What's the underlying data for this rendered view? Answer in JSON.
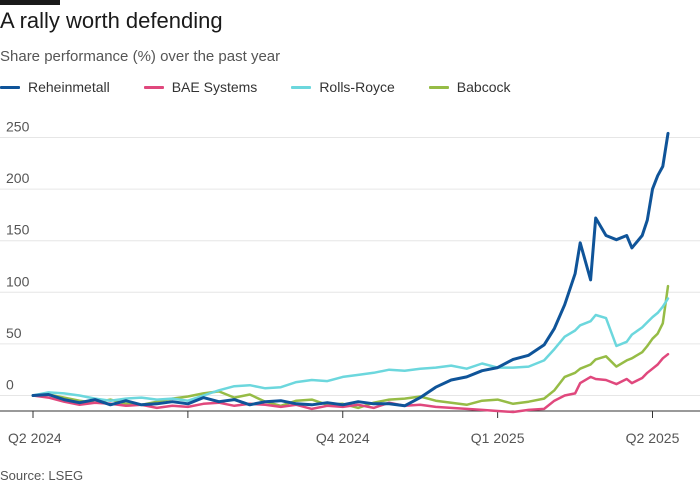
{
  "title": "A rally worth defending",
  "subtitle": "Share performance (%) over the past year",
  "source": "Source: LSEG",
  "chart_data": {
    "type": "line",
    "title": "A rally worth defending",
    "subtitle": "Share performance (%) over the past year",
    "xlabel": "",
    "ylabel": "Share performance (%)",
    "ylim": [
      -20,
      265
    ],
    "xlim": [
      0,
      12.3
    ],
    "x_unit": "months since start of Q2 2024",
    "yticks": [
      0,
      50,
      100,
      150,
      200,
      250
    ],
    "xticks": [
      {
        "value": 0,
        "label": "Q2 2024"
      },
      {
        "value": 6,
        "label": "Q4 2024"
      },
      {
        "value": 9,
        "label": "Q1 2025"
      },
      {
        "value": 12,
        "label": "Q2 2025"
      }
    ],
    "extra_xticks": [
      3
    ],
    "extra_xtick_labels": [
      {
        "value": 12,
        "label": "Q2 2025"
      }
    ],
    "grid": true,
    "legend_position": "top-left",
    "series": [
      {
        "name": "Reheinmetall",
        "color": "#0f5499",
        "x": [
          0,
          0.3,
          0.6,
          0.9,
          1.2,
          1.5,
          1.8,
          2.1,
          2.4,
          2.7,
          3.0,
          3.3,
          3.6,
          3.9,
          4.2,
          4.5,
          4.8,
          5.1,
          5.4,
          5.7,
          6.0,
          6.3,
          6.6,
          6.9,
          7.2,
          7.5,
          7.8,
          8.1,
          8.4,
          8.7,
          9.0,
          9.3,
          9.6,
          9.9,
          10.1,
          10.3,
          10.5,
          10.6,
          10.8,
          10.9,
          11.1,
          11.3,
          11.5,
          11.6,
          11.8,
          11.9,
          12.0,
          12.1,
          12.2,
          12.3
        ],
        "values": [
          0,
          1,
          -4,
          -7,
          -4,
          -9,
          -5,
          -9,
          -8,
          -6,
          -8,
          -2,
          -6,
          -4,
          -9,
          -6,
          -5,
          -8,
          -9,
          -7,
          -9,
          -6,
          -8,
          -8,
          -10,
          -2,
          8,
          15,
          18,
          24,
          27,
          35,
          39,
          49,
          65,
          88,
          118,
          148,
          112,
          172,
          155,
          151,
          155,
          143,
          155,
          170,
          200,
          213,
          222,
          254
        ]
      },
      {
        "name": "BAE Systems",
        "color": "#e0487d",
        "x": [
          0,
          0.3,
          0.6,
          0.9,
          1.2,
          1.5,
          1.8,
          2.1,
          2.4,
          2.7,
          3.0,
          3.3,
          3.6,
          3.9,
          4.2,
          4.5,
          4.8,
          5.1,
          5.4,
          5.7,
          6.0,
          6.3,
          6.6,
          6.9,
          7.2,
          7.5,
          7.8,
          8.1,
          8.4,
          8.7,
          9.0,
          9.3,
          9.6,
          9.9,
          10.1,
          10.3,
          10.5,
          10.6,
          10.8,
          10.9,
          11.1,
          11.3,
          11.5,
          11.6,
          11.8,
          11.9,
          12.0,
          12.1,
          12.2,
          12.3
        ],
        "values": [
          0,
          -2,
          -6,
          -9,
          -7,
          -8,
          -10,
          -9,
          -12,
          -10,
          -11,
          -8,
          -7,
          -10,
          -8,
          -9,
          -11,
          -9,
          -13,
          -10,
          -11,
          -9,
          -12,
          -7,
          -10,
          -9,
          -11,
          -12,
          -13,
          -14,
          -15,
          -16,
          -14,
          -13,
          -5,
          0,
          2,
          12,
          18,
          16,
          15,
          11,
          16,
          12,
          17,
          22,
          26,
          30,
          36,
          40
        ]
      },
      {
        "name": "Rolls-Royce",
        "color": "#6cd7dd",
        "x": [
          0,
          0.3,
          0.6,
          0.9,
          1.2,
          1.5,
          1.8,
          2.1,
          2.4,
          2.7,
          3.0,
          3.3,
          3.6,
          3.9,
          4.2,
          4.5,
          4.8,
          5.1,
          5.4,
          5.7,
          6.0,
          6.3,
          6.6,
          6.9,
          7.2,
          7.5,
          7.8,
          8.1,
          8.4,
          8.7,
          9.0,
          9.3,
          9.6,
          9.9,
          10.1,
          10.3,
          10.5,
          10.6,
          10.8,
          10.9,
          11.1,
          11.3,
          11.5,
          11.6,
          11.8,
          11.9,
          12.0,
          12.1,
          12.2,
          12.3
        ],
        "values": [
          0,
          3,
          2,
          0,
          -3,
          -5,
          -3,
          -2,
          -4,
          -3,
          -5,
          0,
          5,
          9,
          10,
          7,
          8,
          13,
          15,
          14,
          18,
          20,
          22,
          25,
          24,
          26,
          27,
          29,
          26,
          31,
          27,
          27,
          28,
          34,
          45,
          57,
          63,
          68,
          72,
          78,
          75,
          48,
          52,
          59,
          66,
          71,
          76,
          80,
          86,
          94
        ]
      },
      {
        "name": "Babcock",
        "color": "#96bc46",
        "x": [
          0,
          0.3,
          0.6,
          0.9,
          1.2,
          1.5,
          1.8,
          2.1,
          2.4,
          2.7,
          3.0,
          3.3,
          3.6,
          3.9,
          4.2,
          4.5,
          4.8,
          5.1,
          5.4,
          5.7,
          6.0,
          6.3,
          6.6,
          6.9,
          7.2,
          7.5,
          7.8,
          8.1,
          8.4,
          8.7,
          9.0,
          9.3,
          9.6,
          9.9,
          10.1,
          10.3,
          10.5,
          10.6,
          10.8,
          10.9,
          11.1,
          11.3,
          11.5,
          11.6,
          11.8,
          11.9,
          12.0,
          12.1,
          12.2,
          12.3
        ],
        "values": [
          0,
          1,
          -2,
          -5,
          -7,
          -4,
          -8,
          -9,
          -6,
          -3,
          -1,
          2,
          4,
          -2,
          1,
          -6,
          -10,
          -5,
          -4,
          -9,
          -8,
          -12,
          -7,
          -4,
          -3,
          -1,
          -5,
          -7,
          -9,
          -5,
          -4,
          -8,
          -6,
          -3,
          5,
          18,
          22,
          26,
          30,
          35,
          38,
          28,
          34,
          36,
          42,
          48,
          55,
          60,
          70,
          106
        ]
      }
    ]
  }
}
